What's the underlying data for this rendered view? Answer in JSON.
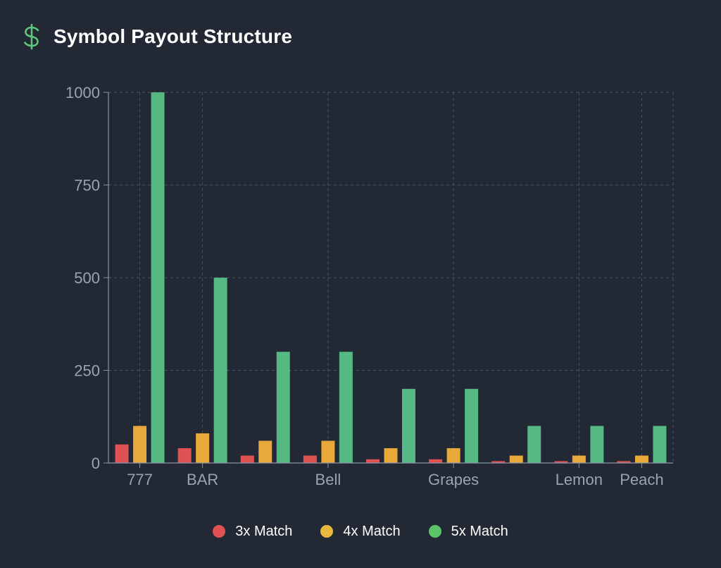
{
  "header": {
    "title": "Symbol Payout Structure",
    "icon": "dollar-sign-icon",
    "icon_color": "#5cc77a"
  },
  "chart_data": {
    "type": "bar",
    "title": "Symbol Payout Structure",
    "xlabel": "",
    "ylabel": "",
    "ylim": [
      0,
      1000
    ],
    "yticks": [
      0,
      250,
      500,
      750,
      1000
    ],
    "grid": true,
    "legend_position": "bottom",
    "categories": [
      "777",
      "BAR",
      "",
      "Bell",
      "",
      "Grapes",
      "",
      "Lemon",
      "Peach"
    ],
    "series": [
      {
        "name": "3x Match",
        "color": "#e05252",
        "values": [
          50,
          40,
          20,
          20,
          10,
          10,
          5,
          5,
          5
        ]
      },
      {
        "name": "4x Match",
        "color": "#e8a93a",
        "values": [
          100,
          80,
          60,
          60,
          40,
          40,
          20,
          20,
          20
        ]
      },
      {
        "name": "5x Match",
        "color": "#56b882",
        "values": [
          1000,
          500,
          300,
          300,
          200,
          200,
          100,
          100,
          100
        ]
      }
    ]
  },
  "legend": [
    {
      "label": "3x Match",
      "color": "#e05252"
    },
    {
      "label": "4x Match",
      "color": "#e8b73e"
    },
    {
      "label": "5x Match",
      "color": "#5cc466"
    }
  ]
}
